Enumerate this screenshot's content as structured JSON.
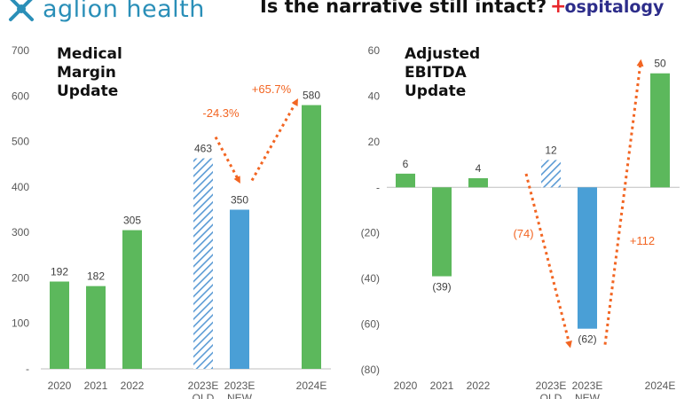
{
  "header": {
    "left_logo_text": "aglion health",
    "headline": "Is the narrative still intact?",
    "right_logo_cross": "+",
    "right_logo_text": "ospitalogy"
  },
  "colors": {
    "green": "#5cb85c",
    "blue": "#4a9fd6",
    "hatch": "#5b9bd5",
    "arrow": "#f26522",
    "logo_teal": "#2a8fb8",
    "logo_navy": "#2d2d8a",
    "logo_red": "#e8262b"
  },
  "chart_data": [
    {
      "type": "bar",
      "title_lines": [
        "Medical",
        "Margin",
        "Update"
      ],
      "categories": [
        [
          "2020"
        ],
        [
          "2021"
        ],
        [
          "2022"
        ],
        [
          "2023E",
          "OLD"
        ],
        [
          "2023E",
          "NEW"
        ],
        [
          "2024E"
        ]
      ],
      "values": [
        192,
        182,
        305,
        463,
        350,
        580
      ],
      "value_labels": [
        "192",
        "182",
        "305",
        "463",
        "350",
        "580"
      ],
      "bar_styles": [
        "green",
        "green",
        "green",
        "hatch",
        "blue",
        "green"
      ],
      "ylim": [
        0,
        700
      ],
      "yticks": [
        0,
        100,
        200,
        300,
        400,
        500,
        600,
        700
      ],
      "ytick_labels": [
        "-",
        "100",
        "200",
        "300",
        "400",
        "500",
        "600",
        "700"
      ],
      "annotations": [
        "-24.3%",
        "+65.7%"
      ]
    },
    {
      "type": "bar",
      "title_lines": [
        "Adjusted",
        "EBITDA",
        "Update"
      ],
      "categories": [
        [
          "2020"
        ],
        [
          "2021"
        ],
        [
          "2022"
        ],
        [
          "2023E",
          "OLD"
        ],
        [
          "2023E",
          "NEW"
        ],
        [
          "2024E"
        ]
      ],
      "values": [
        6,
        -39,
        4,
        12,
        -62,
        50
      ],
      "value_labels": [
        "6",
        "(39)",
        "4",
        "12",
        "(62)",
        "50"
      ],
      "bar_styles": [
        "green",
        "green",
        "green",
        "hatch",
        "blue",
        "green"
      ],
      "ylim": [
        -80,
        60
      ],
      "yticks": [
        -80,
        -60,
        -40,
        -20,
        0,
        20,
        40,
        60
      ],
      "ytick_labels": [
        "(80)",
        "(60)",
        "(40)",
        "(20)",
        "-",
        "20",
        "40",
        "60"
      ],
      "annotations": [
        "(74)",
        "+112"
      ]
    }
  ]
}
